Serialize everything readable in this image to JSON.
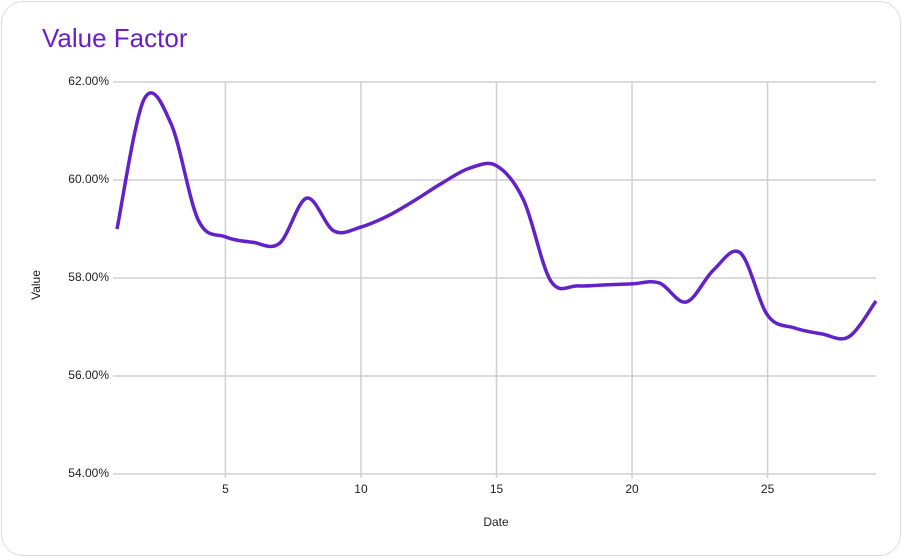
{
  "chart_data": {
    "type": "line",
    "title": "Value Factor",
    "x_label": "Date",
    "y_label": "Value",
    "x": [
      1,
      2,
      3,
      4,
      5,
      6,
      7,
      8,
      9,
      10,
      11,
      12,
      13,
      14,
      15,
      16,
      17,
      18,
      19,
      20,
      21,
      22,
      23,
      24,
      25,
      26,
      27,
      28,
      29
    ],
    "series": [
      {
        "name": "Value",
        "color": "#6322c9",
        "values": [
          59.0,
          61.65,
          61.14,
          59.18,
          58.84,
          58.73,
          58.71,
          59.63,
          58.96,
          59.04,
          59.27,
          59.59,
          59.94,
          60.24,
          60.29,
          59.59,
          57.94,
          57.84,
          57.86,
          57.88,
          57.9,
          57.51,
          58.16,
          58.51,
          57.24,
          56.98,
          56.86,
          56.8,
          57.53
        ]
      }
    ],
    "xlim": [
      1,
      29
    ],
    "xticks": [
      5,
      10,
      15,
      20,
      25
    ],
    "ylim": [
      54,
      62
    ],
    "yticks": [
      {
        "value": 54,
        "label": "54.00%"
      },
      {
        "value": 56,
        "label": "56.00%"
      },
      {
        "value": 58,
        "label": "58.00%"
      },
      {
        "value": 60,
        "label": "60.00%"
      },
      {
        "value": 62,
        "label": "62.00%"
      }
    ],
    "grid": true,
    "title_color": "#6a1fc7"
  }
}
